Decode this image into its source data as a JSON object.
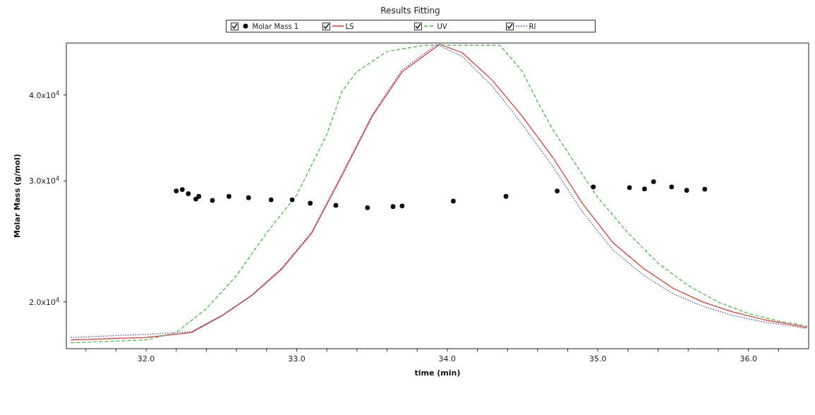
{
  "chart_data": {
    "type": "line",
    "title": "Results Fitting",
    "xlabel": "time (min)",
    "ylabel": "Molar Mass (g/mol)",
    "log": "y",
    "legend": "top",
    "xlim": [
      31.47,
      36.4
    ],
    "xticks": [
      {
        "value": 31.6,
        "label": null
      },
      {
        "value": 31.8,
        "label": null
      },
      {
        "value": 32,
        "label": "32.0"
      },
      {
        "value": 32.2,
        "label": null
      },
      {
        "value": 32.4,
        "label": null
      },
      {
        "value": 32.6,
        "label": null
      },
      {
        "value": 32.8,
        "label": null
      },
      {
        "value": 33,
        "label": "33.0"
      },
      {
        "value": 33.2,
        "label": null
      },
      {
        "value": 33.4,
        "label": null
      },
      {
        "value": 33.6,
        "label": null
      },
      {
        "value": 33.8,
        "label": null
      },
      {
        "value": 34,
        "label": "34.0"
      },
      {
        "value": 34.2,
        "label": null
      },
      {
        "value": 34.4,
        "label": null
      },
      {
        "value": 34.6,
        "label": null
      },
      {
        "value": 34.8,
        "label": null
      },
      {
        "value": 35,
        "label": "35.0"
      },
      {
        "value": 35.2,
        "label": null
      },
      {
        "value": 35.4,
        "label": null
      },
      {
        "value": 35.6,
        "label": null
      },
      {
        "value": 35.8,
        "label": null
      },
      {
        "value": 36,
        "label": "36.0"
      },
      {
        "value": 36.2,
        "label": null
      }
    ],
    "ylim": [
      17100,
      47600
    ],
    "yticks": [
      {
        "value": 20000,
        "label": "2.0x10$^{4}$"
      },
      {
        "value": 30000,
        "label": "3.0x10$^{4}$"
      },
      {
        "value": 40000,
        "label": "4.0x10$^{4}$"
      }
    ],
    "series": [
      {
        "name": "Molar Mass 1",
        "type": "scatter",
        "marker": "circle",
        "color": "#111111",
        "x": [
          32.2,
          32.24,
          32.28,
          32.33,
          32.35,
          32.44,
          32.55,
          32.68,
          32.83,
          32.97,
          33.09,
          33.26,
          33.47,
          33.64,
          33.7,
          34.04,
          34.39,
          34.73,
          34.97,
          35.21,
          35.31,
          35.37,
          35.49,
          35.59,
          35.71
        ],
        "values": [
          29000,
          29140,
          28740,
          28220,
          28480,
          28100,
          28480,
          28350,
          28160,
          28160,
          27830,
          27640,
          27420,
          27520,
          27580,
          28030,
          28480,
          29000,
          29400,
          29330,
          29200,
          29920,
          29400,
          29060,
          29170
        ]
      },
      {
        "name": "LS",
        "line_style": "solid",
        "color": "#e8312f",
        "x": [
          31.5,
          32.0,
          32.3,
          32.5,
          32.7,
          32.9,
          33.1,
          33.3,
          33.5,
          33.6,
          33.7,
          33.95,
          34.1,
          34.3,
          34.5,
          34.7,
          34.9,
          35.1,
          35.3,
          35.5,
          35.7,
          35.9,
          36.1,
          36.39
        ],
        "values": [
          17610,
          17750,
          18050,
          19070,
          20420,
          22310,
          25180,
          30500,
          37190,
          40090,
          43220,
          47400,
          46080,
          42010,
          37190,
          32470,
          27770,
          24390,
          22400,
          20930,
          19980,
          19330,
          18850,
          18360
        ]
      },
      {
        "name": "UV",
        "line_style": "dashed",
        "color": "#3cb93c",
        "x": [
          31.5,
          32.0,
          32.2,
          32.4,
          32.6,
          32.8,
          33.0,
          33.1,
          33.2,
          33.3,
          33.4,
          33.6,
          33.85,
          34.35,
          34.5,
          34.6,
          34.7,
          34.8,
          34.9,
          35.0,
          35.2,
          35.4,
          35.6,
          35.8,
          36.0,
          36.2,
          36.39
        ],
        "values": [
          17440,
          17610,
          18050,
          19550,
          21840,
          25200,
          28610,
          31650,
          35040,
          40460,
          43260,
          46270,
          47250,
          47250,
          43260,
          39100,
          35640,
          33030,
          30600,
          28370,
          25200,
          22770,
          21130,
          19980,
          19240,
          18760,
          18440
        ]
      },
      {
        "name": "RI",
        "line_style": "dotted",
        "color": "#3b3bd8",
        "x": [
          31.5,
          32.0,
          32.3,
          32.5,
          32.7,
          32.9,
          33.1,
          33.3,
          33.5,
          33.6,
          33.7,
          33.93,
          34.1,
          34.3,
          34.5,
          34.7,
          34.9,
          35.1,
          35.3,
          35.5,
          35.7,
          35.9,
          36.1,
          36.39
        ],
        "values": [
          17750,
          17940,
          18100,
          19100,
          20450,
          22400,
          25300,
          30700,
          37400,
          40400,
          43500,
          47400,
          45500,
          41200,
          36200,
          31500,
          27000,
          23800,
          21900,
          20550,
          19700,
          19100,
          18700,
          18300
        ]
      }
    ]
  }
}
